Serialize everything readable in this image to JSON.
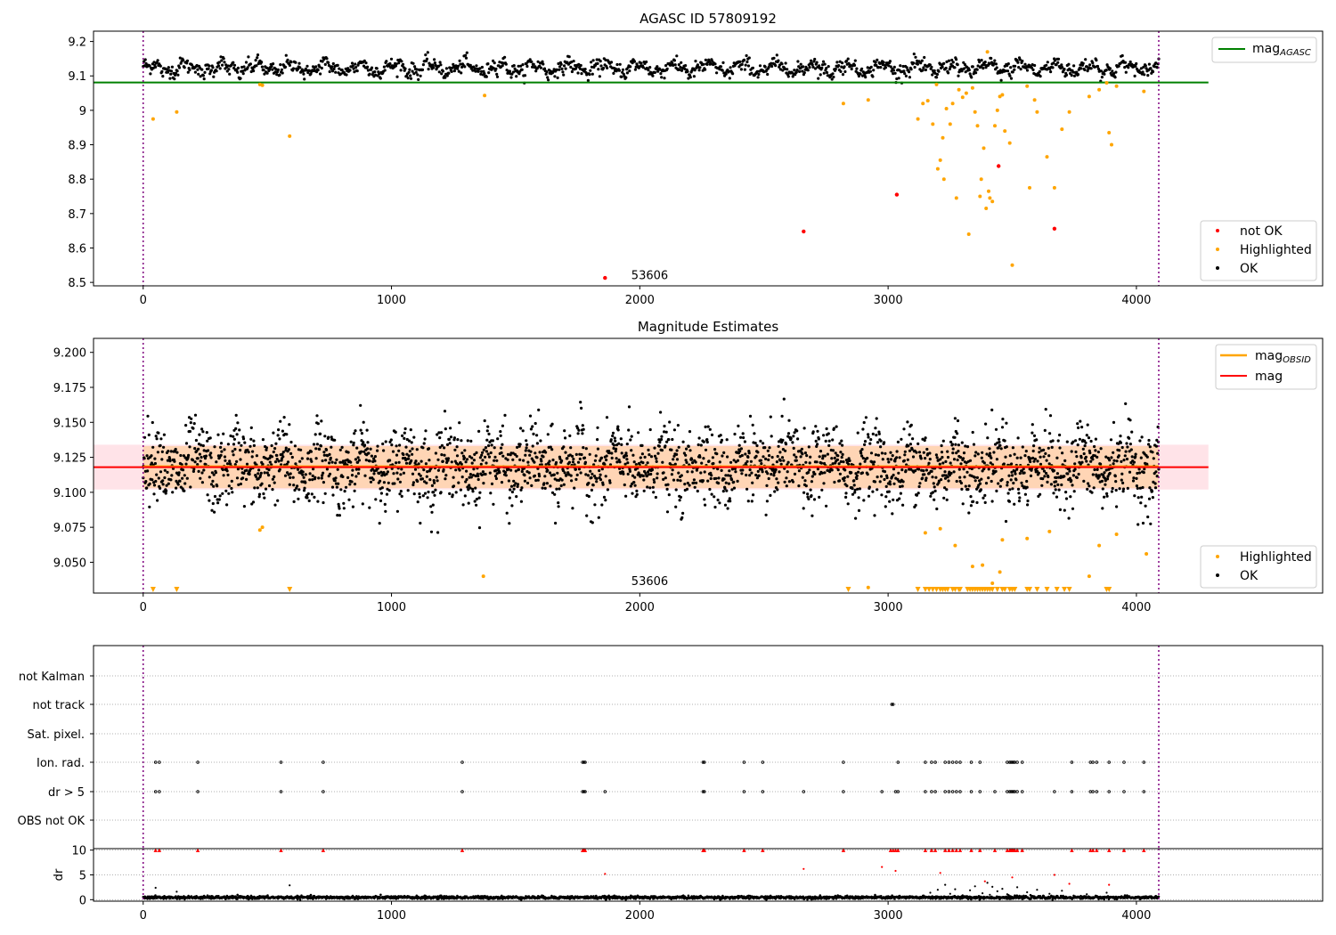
{
  "chart_data": [
    {
      "type": "scatter",
      "title": "AGASC ID 57809192",
      "xlim": [
        -200,
        4750
      ],
      "ylim": [
        8.49,
        9.23
      ],
      "xticks": [
        0,
        1000,
        2000,
        3000,
        4000
      ],
      "yticks": [
        8.5,
        8.6,
        8.7,
        8.8,
        8.9,
        9.0,
        9.1,
        9.2
      ],
      "vlines": [
        0,
        4090
      ],
      "annotation": {
        "text": "53606",
        "x": 2040,
        "y": 8.515
      },
      "hline": {
        "label_main": "mag",
        "label_sub": "AGASC",
        "y": 9.081,
        "x": [
          -200,
          4290
        ],
        "color": "#008000"
      },
      "ok_series": {
        "label": "OK",
        "color": "#000000",
        "x_range": [
          0,
          4090
        ],
        "center": 9.123,
        "amplitude": 0.02,
        "noise": 0.01,
        "count": 1400
      },
      "highlighted": {
        "label": "Highlighted",
        "color": "#ffa500",
        "x": [
          40,
          135,
          470,
          480,
          590,
          1375,
          2820,
          2920,
          3120,
          3140,
          3160,
          3180,
          3195,
          3200,
          3210,
          3220,
          3225,
          3235,
          3250,
          3260,
          3275,
          3285,
          3300,
          3315,
          3325,
          3340,
          3350,
          3360,
          3370,
          3375,
          3385,
          3395,
          3400,
          3405,
          3410,
          3420,
          3430,
          3440,
          3450,
          3460,
          3470,
          3490,
          3500,
          3560,
          3570,
          3590,
          3600,
          3640,
          3670,
          3700,
          3730,
          3810,
          3850,
          3880,
          3890,
          3900,
          3920,
          4030
        ],
        "y": [
          8.975,
          8.995,
          9.075,
          9.073,
          8.925,
          9.043,
          9.02,
          9.03,
          8.975,
          9.02,
          9.028,
          8.96,
          9.075,
          8.83,
          8.855,
          8.92,
          8.8,
          9.005,
          8.96,
          9.02,
          8.745,
          9.06,
          9.038,
          9.05,
          8.64,
          9.065,
          8.995,
          8.955,
          8.75,
          8.8,
          8.89,
          8.715,
          9.17,
          8.765,
          8.745,
          8.735,
          8.955,
          9.0,
          9.04,
          9.045,
          8.94,
          8.905,
          8.55,
          9.07,
          8.775,
          9.03,
          8.995,
          8.865,
          8.775,
          8.945,
          8.995,
          9.04,
          9.06,
          9.08,
          8.935,
          8.9,
          9.07,
          9.055
        ]
      },
      "not_ok": {
        "label": "not OK",
        "color": "#ff0000",
        "x": [
          1860,
          2660,
          3035,
          3445,
          3670
        ],
        "y": [
          8.513,
          8.648,
          8.755,
          8.838,
          8.656
        ]
      },
      "legend_upper": [
        "mag_AGASC"
      ],
      "legend_lower": [
        "not OK",
        "Highlighted",
        "OK"
      ]
    },
    {
      "type": "scatter",
      "title": "Magnitude Estimates",
      "xlim": [
        -200,
        4750
      ],
      "ylim": [
        9.028,
        9.21
      ],
      "xticks": [
        0,
        1000,
        2000,
        3000,
        4000
      ],
      "yticks": [
        9.05,
        9.075,
        9.1,
        9.125,
        9.15,
        9.175,
        9.2
      ],
      "ytick_labels": [
        "9.050",
        "9.075",
        "9.100",
        "9.125",
        "9.150",
        "9.175",
        "9.200"
      ],
      "vlines": [
        0,
        4090
      ],
      "annotation": {
        "text": "53606",
        "x": 2040,
        "y": 9.035
      },
      "mag_line": {
        "label": "mag",
        "y": 9.118,
        "x": [
          -200,
          4290
        ],
        "color": "#ff0000",
        "band": [
          9.102,
          9.134
        ],
        "band_color": "#ffc0cb"
      },
      "mag_obsid": {
        "label_main": "mag",
        "label_sub": "OBSID",
        "color": "#ffa500",
        "band": [
          9.103,
          9.133
        ],
        "x_range": [
          0,
          4090
        ]
      },
      "ok_series": {
        "label": "OK",
        "color": "#000000",
        "x_range": [
          0,
          4090
        ],
        "center": 9.119,
        "amplitude": 0.012,
        "noise": 0.013,
        "count": 2600
      },
      "highlighted": {
        "label": "Highlighted",
        "color": "#ffa500",
        "x": [
          470,
          480,
          1370,
          2920,
          3150,
          3210,
          3270,
          3340,
          3380,
          3420,
          3450,
          3460,
          3560,
          3650,
          3810,
          3850,
          3920,
          4040
        ],
        "y": [
          9.073,
          9.075,
          9.04,
          9.032,
          9.071,
          9.074,
          9.062,
          9.047,
          9.048,
          9.035,
          9.043,
          9.066,
          9.067,
          9.072,
          9.04,
          9.062,
          9.07,
          9.056
        ]
      },
      "down_markers": {
        "color": "#ffa500",
        "x": [
          40,
          135,
          590,
          2840,
          3120,
          3150,
          3165,
          3180,
          3195,
          3210,
          3220,
          3230,
          3240,
          3260,
          3270,
          3285,
          3290,
          3320,
          3330,
          3340,
          3350,
          3360,
          3370,
          3380,
          3390,
          3400,
          3410,
          3420,
          3440,
          3460,
          3470,
          3490,
          3500,
          3510,
          3560,
          3570,
          3600,
          3640,
          3680,
          3710,
          3730,
          3880,
          3890
        ]
      },
      "legend_upper": [
        "mag_OBSID",
        "mag"
      ],
      "legend_lower": [
        "Highlighted",
        "OK"
      ]
    },
    {
      "type": "scatter",
      "title": "",
      "xlim": [
        -200,
        4750
      ],
      "categories": [
        "not Kalman",
        "not track",
        "Sat. pixel.",
        "Ion. rad.",
        "dr > 5",
        "OBS not OK"
      ],
      "vlines": [
        0,
        4090
      ],
      "flags": {
        "not track": [
          3015,
          3020
        ],
        "Ion. rad.": [
          50,
          65,
          220,
          555,
          725,
          1285,
          1770,
          1775,
          1780,
          2255,
          2260,
          2420,
          2495,
          2820,
          3040,
          3150,
          3175,
          3190,
          3230,
          3245,
          3260,
          3275,
          3290,
          3335,
          3370,
          3480,
          3490,
          3495,
          3500,
          3505,
          3510,
          3520,
          3540,
          3740,
          3815,
          3825,
          3840,
          3890,
          3950,
          4030
        ],
        "dr > 5": [
          50,
          65,
          220,
          555,
          725,
          1285,
          1770,
          1775,
          1780,
          1860,
          2255,
          2260,
          2420,
          2495,
          2660,
          2820,
          2975,
          3030,
          3040,
          3150,
          3175,
          3190,
          3230,
          3245,
          3260,
          3275,
          3290,
          3335,
          3370,
          3430,
          3480,
          3490,
          3495,
          3500,
          3505,
          3510,
          3520,
          3540,
          3670,
          3740,
          3815,
          3825,
          3840,
          3890,
          3950,
          4030
        ]
      }
    },
    {
      "type": "scatter",
      "ylabel": "dr",
      "xlim": [
        -200,
        4750
      ],
      "ylim": [
        -0.3,
        10.3
      ],
      "xticks": [
        0,
        1000,
        2000,
        3000,
        4000
      ],
      "yticks": [
        0,
        5,
        10
      ],
      "vlines": [
        0,
        4090
      ],
      "capped_markers": {
        "y": 10,
        "color": "#ff0000",
        "x": [
          50,
          65,
          220,
          555,
          725,
          1285,
          1770,
          1775,
          1780,
          2255,
          2260,
          2420,
          2495,
          2820,
          3010,
          3020,
          3030,
          3040,
          3150,
          3175,
          3190,
          3230,
          3245,
          3260,
          3275,
          3290,
          3335,
          3370,
          3430,
          3480,
          3490,
          3495,
          3500,
          3505,
          3510,
          3520,
          3540,
          3740,
          3815,
          3825,
          3840,
          3890,
          3950,
          4030
        ]
      },
      "red_points": {
        "color": "#ff0000",
        "x": [
          1860,
          2660,
          2975,
          3030,
          3210,
          3390,
          3500,
          3670,
          3730,
          3890
        ],
        "y": [
          5.2,
          6.2,
          6.6,
          5.8,
          5.4,
          3.7,
          4.5,
          5.0,
          3.2,
          3.0
        ]
      },
      "black_points": {
        "color": "#000000",
        "x": [
          50,
          135,
          590,
          3170,
          3200,
          3230,
          3250,
          3270,
          3300,
          3330,
          3350,
          3380,
          3400,
          3410,
          3420,
          3440,
          3460,
          3480,
          3520,
          3560,
          3600,
          3650,
          3700,
          3800,
          3880
        ],
        "y": [
          2.4,
          1.6,
          2.9,
          1.4,
          2.0,
          3.0,
          1.2,
          2.1,
          0.9,
          1.9,
          2.7,
          1.3,
          3.4,
          1.0,
          2.6,
          1.7,
          2.2,
          1.1,
          2.5,
          1.5,
          2.0,
          1.2,
          1.8,
          1.1,
          1.4
        ]
      },
      "baseline": {
        "x_range": [
          0,
          4090
        ],
        "center": 0.45,
        "noise": 0.25,
        "count": 2400
      }
    }
  ]
}
